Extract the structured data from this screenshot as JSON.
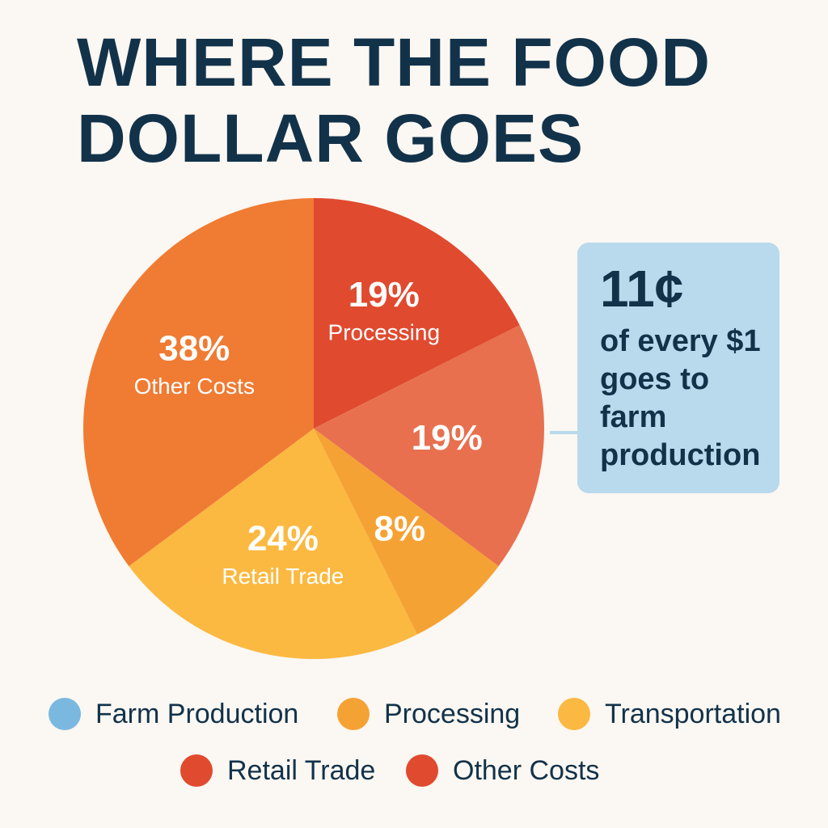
{
  "chart_data": {
    "type": "pie",
    "title": "WHERE THE FOOD DOLLAR GOES",
    "categories": [
      "Processing",
      null,
      null,
      "Retail Trade",
      "Other Costs"
    ],
    "values": [
      19,
      19,
      8,
      24,
      38
    ],
    "value_labels": [
      "19%",
      "19%",
      "8%",
      "24%",
      "38%"
    ],
    "colors": [
      "#e04a2f",
      "#e8704f",
      "#f5a235",
      "#fbb941",
      "#f07b33"
    ],
    "callout": {
      "headline": "11¢",
      "lines": [
        "of every $1",
        "goes to",
        "farm",
        "production"
      ]
    },
    "legend": [
      {
        "name": "Farm Production",
        "color": "#7ab8e0"
      },
      {
        "name": "Processing",
        "color": "#f5a235"
      },
      {
        "name": "Transportation",
        "color": "#fbb941"
      },
      {
        "name": "Retail Trade",
        "color": "#e04a2f"
      },
      {
        "name": "Other Costs",
        "color": "#e04a2f"
      }
    ]
  }
}
